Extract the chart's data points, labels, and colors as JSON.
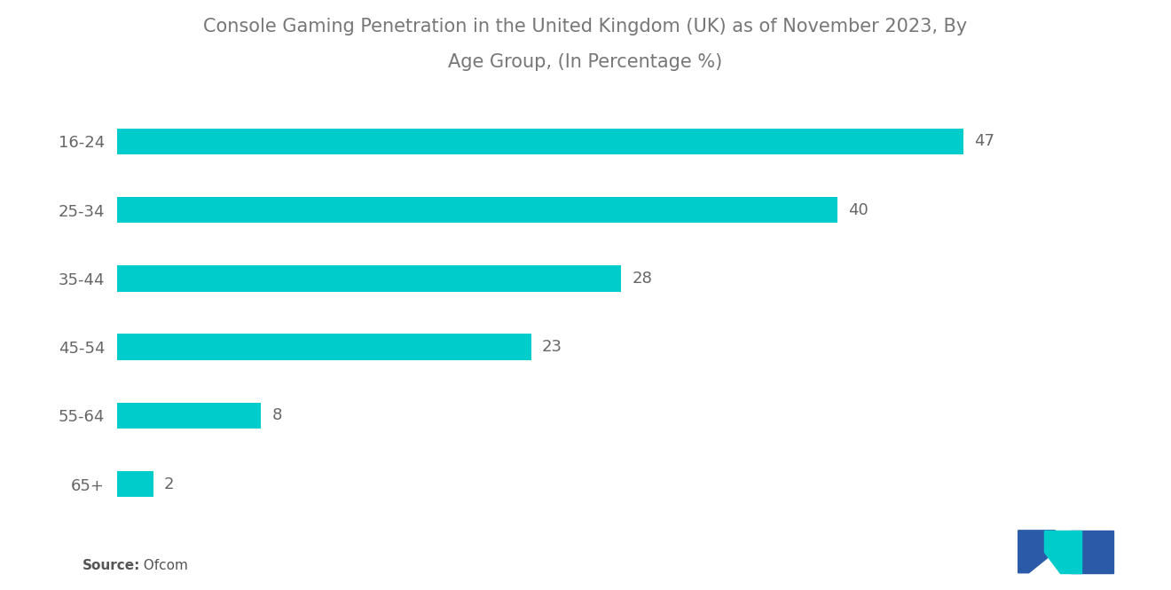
{
  "title_line1": "Console Gaming Penetration in the United Kingdom (UK) as of November 2023, By",
  "title_line2": "Age Group, (In Percentage %)",
  "categories": [
    "16-24",
    "25-34",
    "35-44",
    "45-54",
    "55-64",
    "65+"
  ],
  "values": [
    47,
    40,
    28,
    23,
    8,
    2
  ],
  "bar_color": "#00CCCC",
  "background_color": "#ffffff",
  "title_fontsize": 15,
  "label_fontsize": 13,
  "value_fontsize": 13,
  "source_bold": "Source:",
  "source_normal": "  Ofcom",
  "xlim": [
    0,
    54
  ],
  "bar_height": 0.38,
  "logo_color1": "#2b5ba8",
  "logo_color2": "#00cccc"
}
